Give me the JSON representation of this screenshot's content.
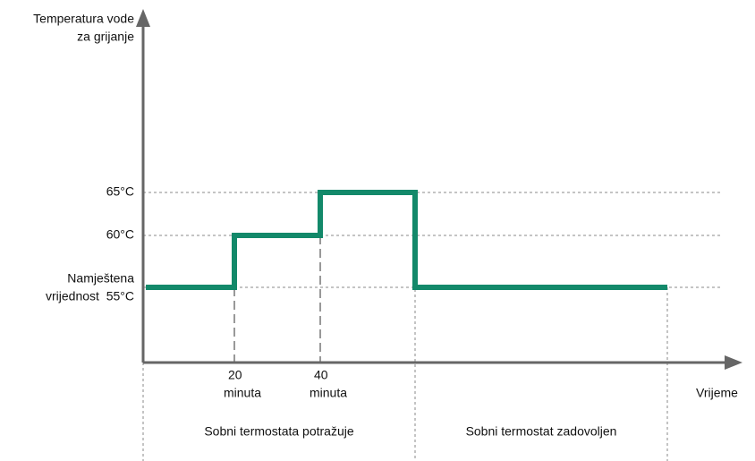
{
  "axis_title": [
    "Temperatura vode",
    "za grijanje"
  ],
  "levels": {
    "high": "65°C",
    "mid": "60°C",
    "set": [
      "Namještena",
      "vrijednost  55°C"
    ]
  },
  "time_marks": [
    [
      "20",
      "minuta"
    ],
    [
      "40",
      "minuta"
    ]
  ],
  "x_axis_title": "Vrijeme",
  "phases": [
    "Sobni termostata potražuje",
    "Sobni termostat zadovoljen"
  ]
}
